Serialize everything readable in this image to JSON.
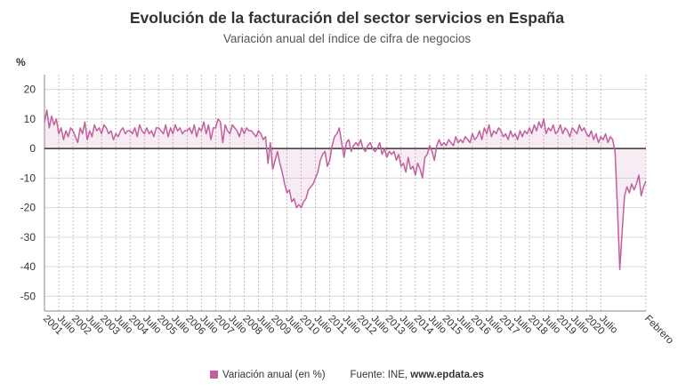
{
  "chart_data": {
    "type": "line",
    "title": "Evolución de la facturación del sector servicios en España",
    "subtitle": "Variación anual del índice de cifra de negocios",
    "ylabel": "%",
    "ylim": [
      -55,
      25
    ],
    "y_ticks": [
      20,
      10,
      0,
      -10,
      -20,
      -30,
      -40,
      -50
    ],
    "x_start": "2001-01",
    "x_end": "2021-02",
    "x_tick_labels": [
      "2001",
      "Julio",
      "2002",
      "Julio",
      "2003",
      "Julio",
      "2004",
      "Julio",
      "2005",
      "Julio",
      "2006",
      "Julio",
      "2007",
      "Julio",
      "2008",
      "Julio",
      "2009",
      "Julio",
      "2010",
      "Julio",
      "2011",
      "Julio",
      "2012",
      "Julio",
      "2013",
      "Julio",
      "2014",
      "Julio",
      "2015",
      "Julio",
      "2016",
      "Julio",
      "2017",
      "Julio",
      "2018",
      "Julio",
      "2019",
      "Julio",
      "2020",
      "Julio",
      "Febrero"
    ],
    "grid": true,
    "legend_position": "bottom",
    "series": [
      {
        "name": "Variación anual (en %)",
        "color": "#c0609e",
        "values": [
          9,
          13,
          7,
          11,
          8,
          10,
          5,
          7,
          3,
          6,
          4,
          7,
          6,
          4,
          2,
          7,
          5,
          9,
          3,
          6,
          4,
          8,
          6,
          7,
          5,
          8,
          7,
          5,
          6,
          3,
          5,
          4,
          6,
          7,
          5,
          6,
          6,
          5,
          7,
          4,
          8,
          6,
          5,
          7,
          5,
          6,
          4,
          7,
          7,
          6,
          5,
          8,
          4,
          7,
          5,
          8,
          6,
          7,
          5,
          6,
          6,
          7,
          5,
          8,
          4,
          7,
          6,
          9,
          5,
          8,
          3,
          7,
          7,
          10,
          9,
          2,
          8,
          6,
          5,
          8,
          7,
          6,
          4,
          7,
          5,
          7,
          6,
          6,
          5,
          4,
          6,
          5,
          3,
          4,
          -5,
          2,
          -7,
          -4,
          -1,
          -5,
          -8,
          -12,
          -15,
          -14,
          -18,
          -17,
          -20,
          -19,
          -20,
          -18,
          -17,
          -14,
          -13,
          -12,
          -10,
          -8,
          -4,
          -2,
          -1,
          -6,
          -4,
          1,
          4,
          5,
          7,
          2,
          -3,
          2,
          3,
          -1,
          1,
          2,
          1,
          3,
          0,
          -1,
          1,
          2,
          0,
          -1,
          0,
          2,
          -2,
          0,
          -3,
          -1,
          -2,
          -1,
          -4,
          -2,
          -6,
          -5,
          -8,
          -3,
          -7,
          -6,
          -9,
          -5,
          -7,
          -10,
          -3,
          -2,
          1,
          -1,
          -4,
          1,
          3,
          1,
          2,
          1,
          3,
          2,
          1,
          4,
          2,
          3,
          2,
          4,
          3,
          2,
          5,
          3,
          4,
          6,
          3,
          7,
          5,
          8,
          4,
          6,
          5,
          7,
          6,
          4,
          5,
          3,
          6,
          4,
          5,
          3,
          6,
          4,
          6,
          5,
          7,
          5,
          8,
          6,
          9,
          7,
          10,
          5,
          7,
          6,
          8,
          5,
          6,
          8,
          5,
          7,
          6,
          4,
          7,
          6,
          5,
          8,
          6,
          7,
          5,
          4,
          6,
          3,
          5,
          2,
          4,
          3,
          5,
          2,
          4,
          3,
          -1,
          -20,
          -41,
          -28,
          -16,
          -13,
          -15,
          -12,
          -14,
          -12,
          -9,
          -16,
          -13,
          -11
        ]
      }
    ]
  },
  "legend": {
    "series_label": "Variación anual (en %)",
    "source_label": "Fuente: INE, ",
    "source_site": "www.epdata.es"
  }
}
